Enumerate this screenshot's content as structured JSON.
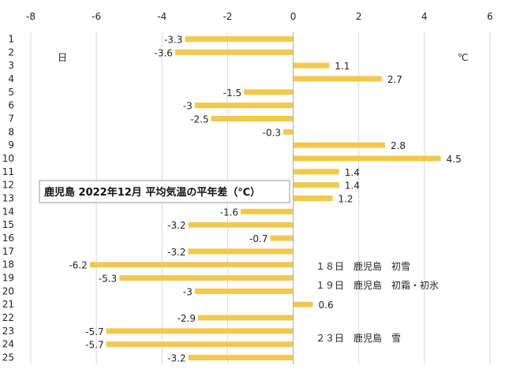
{
  "chart_data": {
    "type": "bar",
    "orientation": "horizontal",
    "title": "鹿児島 2022年12月 平均気温の平年差（℃）",
    "categories": [
      "1",
      "2",
      "3",
      "4",
      "5",
      "6",
      "7",
      "8",
      "9",
      "10",
      "11",
      "12",
      "13",
      "14",
      "15",
      "16",
      "17",
      "18",
      "19",
      "20",
      "21",
      "22",
      "23",
      "24",
      "25"
    ],
    "values": [
      -3.3,
      -3.6,
      1.1,
      2.7,
      -1.5,
      -3,
      -2.5,
      -0.3,
      2.8,
      4.5,
      1.4,
      1.4,
      1.2,
      -1.6,
      -3.2,
      -0.7,
      -3.2,
      -6.2,
      -5.3,
      -3,
      0.6,
      -2.9,
      -5.7,
      -5.7,
      -3.2
    ],
    "value_labels": [
      "-3.3",
      "-3.6",
      "1.1",
      "2.7",
      "-1.5",
      "-3",
      "-2.5",
      "-0.3",
      "2.8",
      "4.5",
      "1.4",
      "1.4",
      "1.2",
      "-1.6",
      "-3.2",
      "-0.7",
      "-3.2",
      "-6.2",
      "-5.3",
      "-3",
      "0.6",
      "-2.9",
      "-5.7",
      "-5.7",
      "-3.2"
    ],
    "xlim": [
      -8,
      6
    ],
    "xticks": [
      "-8",
      "-6",
      "-4",
      "-2",
      "0",
      "2",
      "4",
      "6"
    ],
    "category_axis_label": "日",
    "value_axis_label": "℃",
    "bar_color": "#F2C94C",
    "grid": true,
    "annotations": [
      "１８日　鹿児島　初雪",
      "１９日　鹿児島　初霜・初氷",
      "２３日　鹿児島　雪"
    ]
  }
}
